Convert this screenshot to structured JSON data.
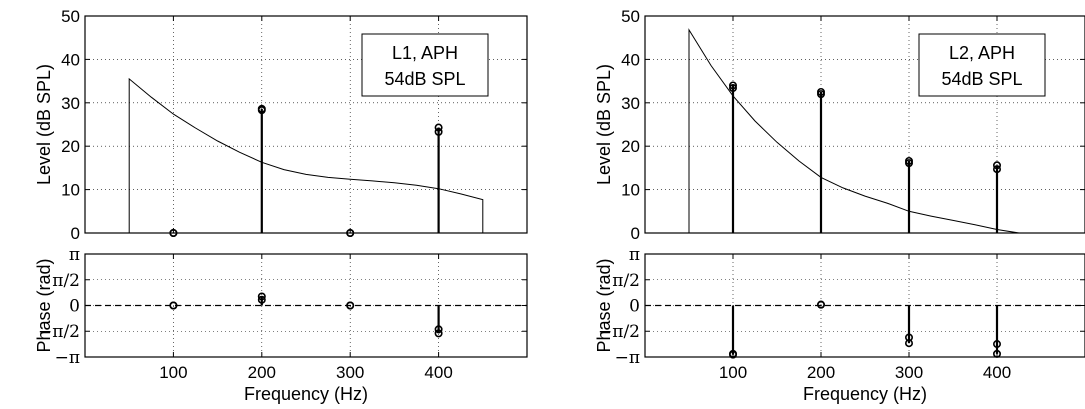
{
  "chart_data": [
    {
      "type": "line",
      "panel": "level",
      "legend_lines": [
        "L1, APH",
        "54dB SPL"
      ],
      "legend_position": "top-right",
      "ylabel": "Level (dB SPL)",
      "xlim": [
        0,
        500
      ],
      "ylim": [
        0,
        50
      ],
      "yticks": [
        0,
        10,
        20,
        30,
        40,
        50
      ],
      "grid": true,
      "curve": {
        "x": [
          50,
          50,
          75,
          100,
          125,
          150,
          175,
          200,
          225,
          250,
          275,
          300,
          325,
          350,
          375,
          400,
          425,
          450,
          450
        ],
        "y": [
          0,
          35.5,
          31.3,
          27.4,
          24.2,
          21.2,
          18.6,
          16.3,
          14.6,
          13.5,
          12.8,
          12.4,
          12.0,
          11.6,
          11.0,
          10.2,
          9.0,
          7.7,
          0
        ]
      },
      "stems": [
        {
          "x": 100,
          "values": [
            0,
            0
          ]
        },
        {
          "x": 200,
          "values": [
            28.3,
            28.6
          ]
        },
        {
          "x": 300,
          "values": [
            0,
            0
          ]
        },
        {
          "x": 400,
          "values": [
            23.3,
            24.3
          ]
        }
      ]
    },
    {
      "type": "scatter",
      "panel": "phase",
      "ylabel": "Phase (rad)",
      "xlabel": "Frequency (Hz)",
      "xlim": [
        0,
        500
      ],
      "xticks": [
        100,
        200,
        300,
        400
      ],
      "ylim": [
        -3.1416,
        3.1416
      ],
      "ytick_labels": [
        "−π",
        "−π/2",
        "0",
        "π/2",
        "π"
      ],
      "grid": true,
      "zero_line": "dashed",
      "stems": [
        {
          "x": 100,
          "values": [
            0,
            0
          ]
        },
        {
          "x": 200,
          "values": [
            0.35,
            0.55
          ]
        },
        {
          "x": 300,
          "values": [
            0,
            0
          ]
        },
        {
          "x": 400,
          "values": [
            -1.45,
            -1.7
          ]
        }
      ]
    },
    {
      "type": "line",
      "panel": "level",
      "legend_lines": [
        "L2, APH",
        "54dB SPL"
      ],
      "legend_position": "top-right",
      "ylabel": "Level (dB SPL)",
      "xlim": [
        0,
        500
      ],
      "ylim": [
        0,
        50
      ],
      "yticks": [
        0,
        10,
        20,
        30,
        40,
        50
      ],
      "grid": true,
      "curve": {
        "x": [
          50,
          50,
          75,
          100,
          125,
          150,
          175,
          200,
          225,
          250,
          275,
          300,
          325,
          350,
          375,
          400,
          425,
          450,
          500
        ],
        "y": [
          0,
          46.8,
          38.6,
          31.6,
          25.8,
          20.9,
          16.6,
          12.8,
          10.4,
          8.5,
          6.9,
          5.0,
          3.9,
          2.9,
          1.9,
          0.8,
          0,
          0,
          0
        ]
      },
      "stems": [
        {
          "x": 100,
          "values": [
            33.4,
            34.0
          ]
        },
        {
          "x": 200,
          "values": [
            32.0,
            32.5
          ]
        },
        {
          "x": 300,
          "values": [
            16.1,
            16.6
          ]
        },
        {
          "x": 400,
          "values": [
            14.7,
            15.6
          ]
        }
      ]
    },
    {
      "type": "scatter",
      "panel": "phase",
      "ylabel": "Phase (rad)",
      "xlabel": "Frequency (Hz)",
      "xlim": [
        0,
        500
      ],
      "xticks": [
        100,
        200,
        300,
        400
      ],
      "ylim": [
        -3.1416,
        3.1416
      ],
      "ytick_labels": [
        "−π",
        "−π/2",
        "0",
        "π/2",
        "π"
      ],
      "grid": true,
      "zero_line": "dashed",
      "stems": [
        {
          "x": 100,
          "values": [
            -2.95,
            -3.0
          ]
        },
        {
          "x": 200,
          "values": [
            0.05,
            0.05
          ]
        },
        {
          "x": 300,
          "values": [
            -1.95,
            -2.3
          ]
        },
        {
          "x": 400,
          "values": [
            -2.35,
            -2.95
          ]
        }
      ]
    }
  ]
}
